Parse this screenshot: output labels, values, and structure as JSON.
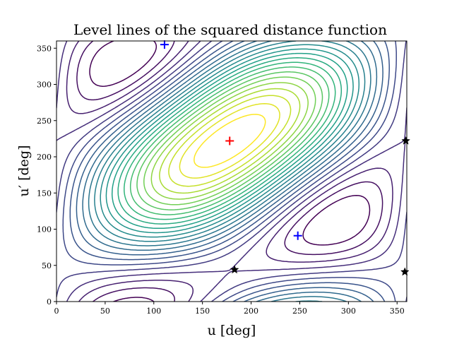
{
  "chart_data": {
    "type": "contour",
    "title": "Level lines of the squared distance function",
    "xlabel": "u [deg]",
    "ylabel": "u′ [deg]",
    "xlim": [
      0,
      360
    ],
    "ylim": [
      0,
      360
    ],
    "xticks": [
      "0",
      "50",
      "100",
      "150",
      "200",
      "250",
      "300",
      "350"
    ],
    "yticks": [
      "0",
      "50",
      "100",
      "150",
      "200",
      "250",
      "300",
      "350"
    ],
    "colormap": "viridis",
    "maximum": {
      "x": 178,
      "y": 222,
      "marker": "plus",
      "color": "#ff0000"
    },
    "saddles": [
      {
        "x": 111,
        "y": 355,
        "marker": "plus",
        "color": "#0000ff"
      },
      {
        "x": 248,
        "y": 91,
        "marker": "plus",
        "color": "#0000ff"
      }
    ],
    "minima": [
      {
        "x": 183,
        "y": 44,
        "marker": "star",
        "color": "#000000"
      },
      {
        "x": 359,
        "y": 222,
        "marker": "star",
        "color": "#000000"
      },
      {
        "x": 358,
        "y": 41,
        "marker": "star",
        "color": "#000000"
      }
    ]
  }
}
